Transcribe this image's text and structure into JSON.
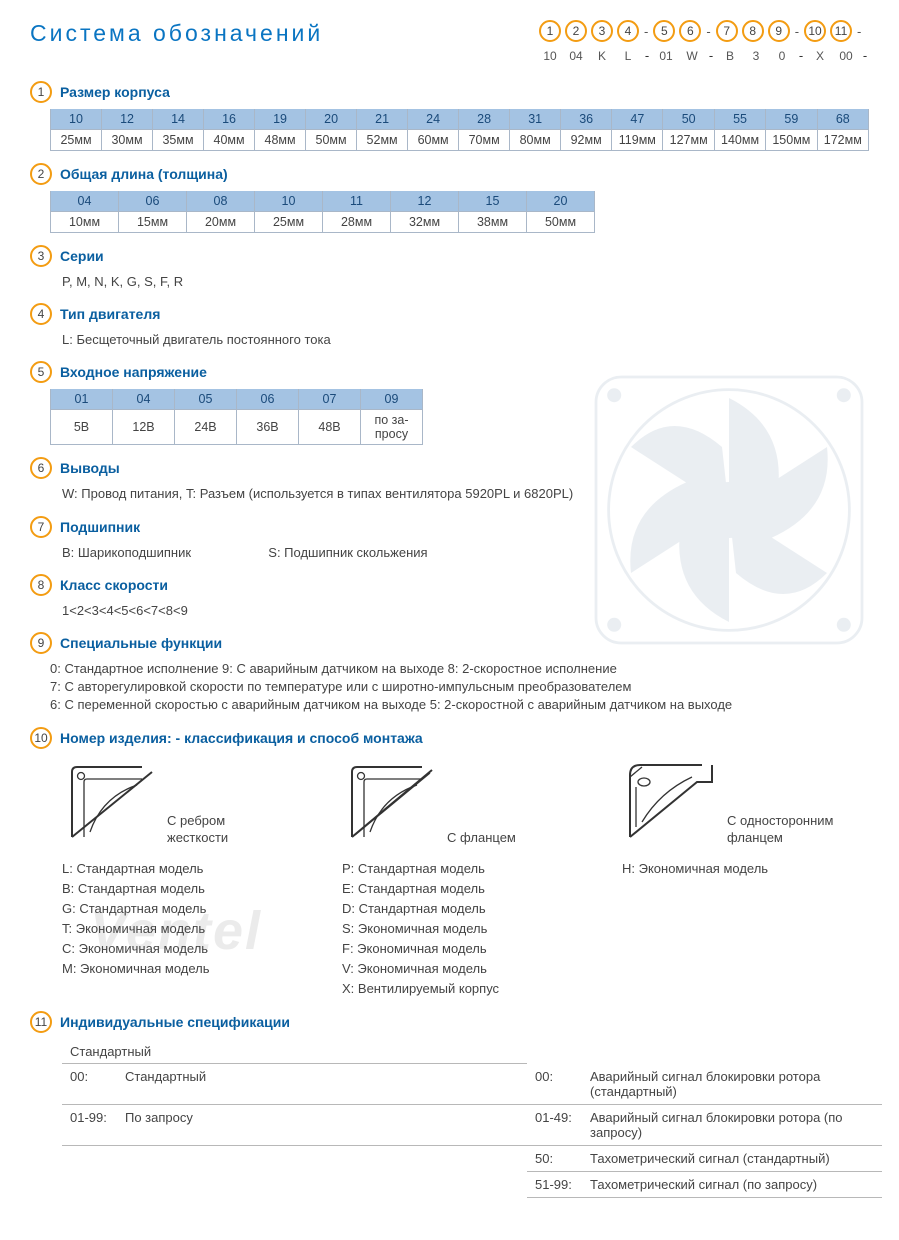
{
  "title": "Система обозначений",
  "header_codes": {
    "nums": [
      "1",
      "2",
      "3",
      "4",
      "5",
      "6",
      "7",
      "8",
      "9",
      "10",
      "11"
    ],
    "dashes_after": [
      3,
      5,
      8,
      10
    ],
    "vals": [
      "10",
      "04",
      "K",
      "L",
      "01",
      "W",
      "B",
      "3",
      "0",
      "X",
      "00"
    ]
  },
  "colors": {
    "accent": "#f39c12",
    "title": "#0a75c2",
    "th_bg": "#a4c3e3"
  },
  "sections": {
    "s1": {
      "title": "Размер корпуса",
      "table": {
        "head": [
          "10",
          "12",
          "14",
          "16",
          "19",
          "20",
          "21",
          "24",
          "28",
          "31",
          "36",
          "47",
          "50",
          "55",
          "59",
          "68"
        ],
        "body": [
          "25мм",
          "30мм",
          "35мм",
          "40мм",
          "48мм",
          "50мм",
          "52мм",
          "60мм",
          "70мм",
          "80мм",
          "92мм",
          "119мм",
          "127мм",
          "140мм",
          "150мм",
          "172мм"
        ]
      }
    },
    "s2": {
      "title": "Общая длина (толщина)",
      "table": {
        "head": [
          "04",
          "06",
          "08",
          "10",
          "11",
          "12",
          "15",
          "20"
        ],
        "body": [
          "10мм",
          "15мм",
          "20мм",
          "25мм",
          "28мм",
          "32мм",
          "38мм",
          "50мм"
        ]
      }
    },
    "s3": {
      "title": "Серии",
      "text": "P, M, N, K, G, S, F, R"
    },
    "s4": {
      "title": "Тип двигателя",
      "text": "L: Бесщеточный двигатель постоянного тока"
    },
    "s5": {
      "title": "Входное напряжение",
      "table": {
        "head": [
          "01",
          "04",
          "05",
          "06",
          "07",
          "09"
        ],
        "body": [
          "5В",
          "12В",
          "24В",
          "36В",
          "48В",
          "по за-\nпросу"
        ]
      }
    },
    "s6": {
      "title": "Выводы",
      "text": "W: Провод питания, T: Разъем (используется в типах вентилятора  5920PL и 6820PL)"
    },
    "s7": {
      "title": "Подшипник",
      "text_a": "B: Шарикоподшипник",
      "text_b": "S: Подшипник скольжения"
    },
    "s8": {
      "title": "Класс скорости",
      "text": "1<2<3<4<5<6<7<8<9"
    },
    "s9": {
      "title": "Специальные функции",
      "line1": "0: Стандартное исполнение   9:  С аварийным датчиком на выходе   8: 2-скоростное исполнение",
      "line2": "7: С авторегулировкой скорости по температуре или с широтно-импульсным преобразователем",
      "line3": "6: С переменной скоростью с аварийным датчиком на выходе   5: 2-скоростной с аварийным датчиком на выходе"
    },
    "s10": {
      "title": "Номер изделия: - классификация  и способ монтажа",
      "col1": {
        "fig_label": "С ребром\nжесткости",
        "models": [
          "L:  Стандартная модель",
          "B:  Стандартная модель",
          "G:  Стандартная модель",
          "T:  Экономичная модель",
          "C:  Экономичная модель",
          "M:  Экономичная модель"
        ]
      },
      "col2": {
        "fig_label": "С фланцем",
        "models": [
          "P:  Стандартная модель",
          "E:  Стандартная модель",
          "D:  Стандартная модель",
          "S:  Экономичная модель",
          "F:  Экономичная модель",
          "V:  Экономичная модель",
          "X:  Вентилируемый корпус"
        ]
      },
      "col3": {
        "fig_label": "С односторонним\nфланцем",
        "models": [
          "H:  Экономичная модель"
        ]
      }
    },
    "s11": {
      "title": "Индивидуальные спецификации",
      "left_head": "Стандартный",
      "left_rows": [
        {
          "code": "00:",
          "text": "Стандартный"
        },
        {
          "code": "01-99:",
          "text": "По запросу"
        }
      ],
      "right_rows": [
        {
          "code": "00:",
          "text": "Аварийный сигнал блокировки ротора (стандартный)"
        },
        {
          "code": "01-49:",
          "text": "Аварийный сигнал блокировки ротора (по запросу)"
        },
        {
          "code": "50:",
          "text": "Тахометрический сигнал (стандартный)"
        },
        {
          "code": "51-99:",
          "text": "Тахометрический сигнал (по запросу)"
        }
      ]
    }
  },
  "watermark": "Ventel"
}
